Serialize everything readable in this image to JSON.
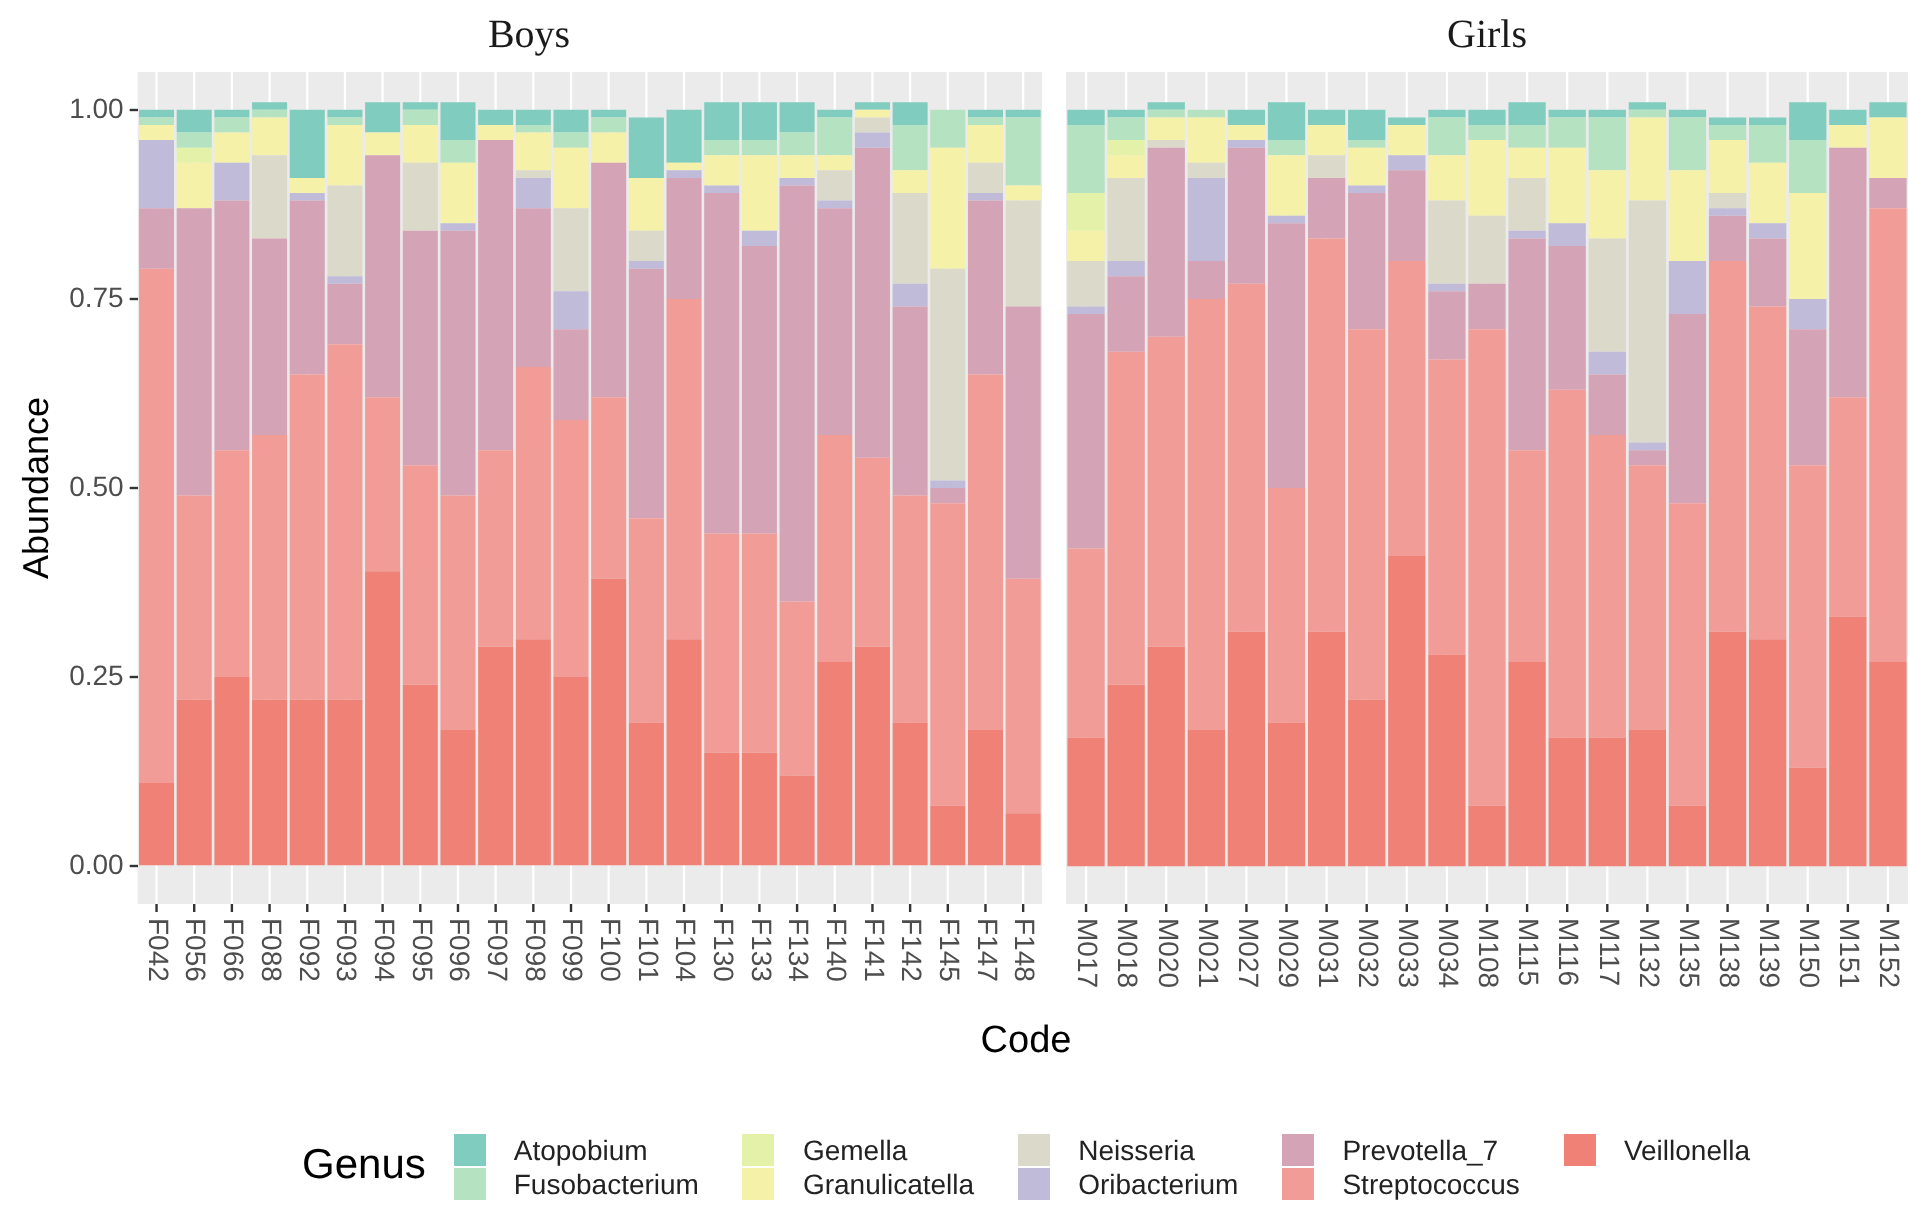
{
  "chart_data": [
    {
      "type": "bar",
      "title": "Boys",
      "xlabel": "Code",
      "ylabel": "Abundance",
      "legend_title": "Genus",
      "legend": "bottom",
      "grid": "x",
      "stacked": true,
      "categories": [
        "F042",
        "F056",
        "F066",
        "F088",
        "F092",
        "F093",
        "F094",
        "F095",
        "F096",
        "F097",
        "F098",
        "F099",
        "F100",
        "F101",
        "F104",
        "F130",
        "F133",
        "F134",
        "F140",
        "F141",
        "F142",
        "F145",
        "F147",
        "F148"
      ],
      "ylim": [
        -0.05,
        1.05
      ],
      "yticks": [
        {
          "value": 0,
          "label": "0.00"
        },
        {
          "value": 0.25,
          "label": "0.25"
        },
        {
          "value": 0.5,
          "label": "0.50"
        },
        {
          "value": 0.75,
          "label": "0.75"
        },
        {
          "value": 1,
          "label": "1.00"
        }
      ],
      "series": [
        {
          "name": "Veillonella",
          "color": "#ef8177",
          "values": [
            0.11,
            0.22,
            0.25,
            0.22,
            0.22,
            0.22,
            0.39,
            0.24,
            0.18,
            0.29,
            0.3,
            0.25,
            0.38,
            0.19,
            0.3,
            0.15,
            0.15,
            0.12,
            0.27,
            0.29,
            0.19,
            0.08,
            0.18,
            0.07
          ]
        },
        {
          "name": "Streptococcus",
          "color": "#f29c98",
          "values": [
            0.68,
            0.27,
            0.3,
            0.35,
            0.43,
            0.47,
            0.23,
            0.29,
            0.31,
            0.26,
            0.36,
            0.34,
            0.24,
            0.27,
            0.45,
            0.29,
            0.29,
            0.23,
            0.3,
            0.25,
            0.3,
            0.4,
            0.47,
            0.31
          ]
        },
        {
          "name": "Prevotella_7",
          "color": "#d4a3b6",
          "values": [
            0.08,
            0.38,
            0.33,
            0.26,
            0.23,
            0.08,
            0.32,
            0.31,
            0.35,
            0.41,
            0.21,
            0.12,
            0.31,
            0.33,
            0.16,
            0.45,
            0.38,
            0.55,
            0.3,
            0.41,
            0.25,
            0.02,
            0.23,
            0.36
          ]
        },
        {
          "name": "Oribacterium",
          "color": "#bfbbd9",
          "values": [
            0.09,
            0,
            0.05,
            0,
            0.01,
            0.01,
            0,
            0,
            0.01,
            0,
            0.04,
            0.05,
            0,
            0.01,
            0.01,
            0.01,
            0.02,
            0.01,
            0.01,
            0.02,
            0.03,
            0.01,
            0.01,
            0
          ]
        },
        {
          "name": "Neisseria",
          "color": "#dbd9c9",
          "values": [
            0,
            0,
            0,
            0.11,
            0,
            0.12,
            0,
            0.09,
            0,
            0,
            0.01,
            0.11,
            0,
            0.04,
            0,
            0,
            0,
            0,
            0.04,
            0.02,
            0.12,
            0.28,
            0.04,
            0.14
          ]
        },
        {
          "name": "Granulicatella",
          "color": "#f5f1a9",
          "values": [
            0.02,
            0.06,
            0.04,
            0.05,
            0.02,
            0.08,
            0.03,
            0.05,
            0.08,
            0.02,
            0.05,
            0.08,
            0.04,
            0.07,
            0.01,
            0.04,
            0.1,
            0.03,
            0.02,
            0.01,
            0.03,
            0.16,
            0.05,
            0.02
          ]
        },
        {
          "name": "Gemella",
          "color": "#e3f2a8",
          "values": [
            0,
            0.02,
            0,
            0,
            0,
            0,
            0,
            0,
            0,
            0,
            0,
            0,
            0,
            0,
            0,
            0,
            0,
            0,
            0,
            0,
            0,
            0,
            0,
            0
          ]
        },
        {
          "name": "Fusobacterium",
          "color": "#b5e2c1",
          "values": [
            0.01,
            0.02,
            0.02,
            0.01,
            0,
            0.01,
            0,
            0.02,
            0.03,
            0,
            0.01,
            0.02,
            0.02,
            0,
            0,
            0.02,
            0.02,
            0.03,
            0.05,
            0,
            0.06,
            0.05,
            0.01,
            0.09
          ]
        },
        {
          "name": "Atopobium",
          "color": "#80cdbf",
          "values": [
            0.01,
            0.03,
            0.01,
            0.01,
            0.09,
            0.01,
            0.04,
            0.01,
            0.05,
            0.02,
            0.02,
            0.03,
            0.01,
            0.08,
            0.07,
            0.05,
            0.05,
            0.04,
            0.01,
            0.01,
            0.03,
            0,
            0.01,
            0.01
          ]
        }
      ]
    },
    {
      "type": "bar",
      "title": "Girls",
      "grid": "x",
      "stacked": true,
      "tick_labels": "x",
      "categories": [
        "M017",
        "M018",
        "M020",
        "M021",
        "M027",
        "M029",
        "M031",
        "M032",
        "M033",
        "M034",
        "M108",
        "M115",
        "M116",
        "M117",
        "M132",
        "M135",
        "M138",
        "M139",
        "M150",
        "M151",
        "M152"
      ],
      "ylim": [
        -0.05,
        1.05
      ],
      "series": [
        {
          "color": "#ef8177",
          "values": [
            0.17,
            0.24,
            0.29,
            0.18,
            0.31,
            0.19,
            0.31,
            0.22,
            0.41,
            0.28,
            0.08,
            0.27,
            0.17,
            0.17,
            0.18,
            0.08,
            0.31,
            0.3,
            0.13,
            0.33,
            0.27
          ]
        },
        {
          "color": "#f29c98",
          "values": [
            0.25,
            0.44,
            0.41,
            0.57,
            0.46,
            0.31,
            0.52,
            0.49,
            0.39,
            0.39,
            0.63,
            0.28,
            0.46,
            0.4,
            0.35,
            0.4,
            0.49,
            0.44,
            0.4,
            0.29,
            0.6
          ]
        },
        {
          "color": "#d4a3b6",
          "values": [
            0.31,
            0.1,
            0.25,
            0.05,
            0.18,
            0.35,
            0.08,
            0.18,
            0.12,
            0.09,
            0.06,
            0.28,
            0.19,
            0.08,
            0.02,
            0.25,
            0.06,
            0.09,
            0.18,
            0.33,
            0.04
          ]
        },
        {
          "color": "#bfbbd9",
          "values": [
            0.01,
            0.02,
            0,
            0.11,
            0.01,
            0.01,
            0,
            0.01,
            0.02,
            0.01,
            0,
            0.01,
            0.03,
            0.03,
            0.01,
            0.07,
            0.01,
            0.02,
            0.04,
            0,
            0
          ]
        },
        {
          "color": "#dbd9c9",
          "values": [
            0.06,
            0.11,
            0.01,
            0.02,
            0,
            0,
            0.03,
            0,
            0,
            0.11,
            0.09,
            0.07,
            0,
            0.15,
            0.32,
            0,
            0.02,
            0,
            0,
            0,
            0
          ]
        },
        {
          "color": "#f5f1a9",
          "values": [
            0.04,
            0.03,
            0.03,
            0.06,
            0.02,
            0.08,
            0.04,
            0.05,
            0.04,
            0.06,
            0.1,
            0.04,
            0.1,
            0.09,
            0.11,
            0.12,
            0.07,
            0.08,
            0.14,
            0.03,
            0.08
          ]
        },
        {
          "color": "#e3f2a8",
          "values": [
            0.05,
            0.02,
            0,
            0,
            0,
            0,
            0,
            0,
            0,
            0,
            0,
            0,
            0,
            0,
            0,
            0,
            0,
            0,
            0,
            0,
            0
          ]
        },
        {
          "color": "#b5e2c1",
          "values": [
            0.09,
            0.03,
            0.01,
            0.01,
            0,
            0.02,
            0,
            0.01,
            0,
            0.05,
            0.02,
            0.03,
            0.04,
            0.07,
            0.01,
            0.07,
            0.02,
            0.05,
            0.07,
            0,
            0
          ]
        },
        {
          "color": "#80cdbf",
          "values": [
            0.02,
            0.01,
            0.01,
            0,
            0.02,
            0.05,
            0.02,
            0.04,
            0.01,
            0.01,
            0.02,
            0.03,
            0.01,
            0.01,
            0.01,
            0.01,
            0.01,
            0.01,
            0.05,
            0.02,
            0.02
          ]
        }
      ]
    }
  ]
}
